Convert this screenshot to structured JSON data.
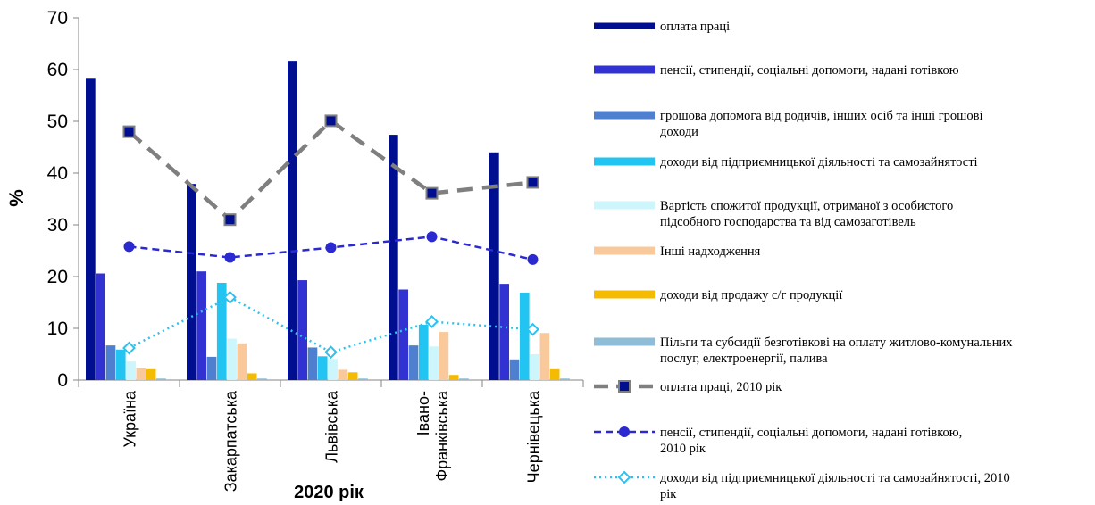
{
  "chart_data": {
    "type": "bar",
    "ylabel": "%",
    "xlabel": "2020 рік",
    "ylim": [
      0,
      70
    ],
    "yticks": [
      0,
      10,
      20,
      30,
      40,
      50,
      60,
      70
    ],
    "categories": [
      "Україна",
      "Закарпатська",
      "Львівська",
      "Івано-\nФранківська",
      "Чернівецька"
    ],
    "series": [
      {
        "name": "оплата праці",
        "color": "#000f8f",
        "values": [
          58.4,
          37.9,
          61.7,
          47.4,
          44.0
        ]
      },
      {
        "name": "пенсії,  стипендії,  соціальні  допомоги,  надані готівкою",
        "color": "#3232d2",
        "values": [
          20.6,
          21.0,
          19.3,
          17.5,
          18.6
        ]
      },
      {
        "name": "грошова допомога від родичів,  інших  осіб та інші грошові доходи",
        "color": "#4f7fcf",
        "values": [
          6.7,
          4.5,
          6.3,
          6.7,
          4.0
        ]
      },
      {
        "name": "доходи від підприємницької  діяльності та самозайнятості",
        "color": "#22c5f2",
        "values": [
          5.9,
          18.8,
          4.6,
          10.7,
          16.9
        ]
      },
      {
        "name": "Вартість спожитої продукції,  отриманої з особистого підсобного господарства та від самозаготівель",
        "color": "#ccf6fb",
        "values": [
          3.6,
          8.0,
          4.1,
          6.5,
          5.0
        ]
      },
      {
        "name": "Інші  надходження",
        "color": "#f9c99c",
        "values": [
          2.3,
          7.1,
          2.0,
          9.3,
          9.1
        ]
      },
      {
        "name": "доходи від продажу с/г продукції",
        "color": "#f4bb00",
        "values": [
          2.1,
          1.3,
          1.5,
          1.0,
          2.1
        ]
      },
      {
        "name": "Пільги та субсидії безготівкові на оплату житлово-комунальних  послуг, електроенергії,  палива",
        "color": "#8fbcd6",
        "values": [
          0.3,
          0.3,
          0.3,
          0.3,
          0.3
        ]
      }
    ],
    "lines": [
      {
        "name": "оплата праці,  2010 рік",
        "color": "#7f7f7f",
        "style": "dashed-square",
        "values": [
          48.0,
          31.0,
          50.1,
          36.1,
          38.2
        ]
      },
      {
        "name": "пенсії,  стипендії,  соціальні  допомоги,  надані готівкою,  2010 рік",
        "color": "#2a2ad0",
        "style": "dashed-circle",
        "values": [
          25.8,
          23.7,
          25.6,
          27.7,
          23.3
        ]
      },
      {
        "name": "доходи від підприємницької  діяльності та самозайнятості, 2010 рік",
        "color": "#2ec1ef",
        "style": "dotted-diamond",
        "values": [
          6.2,
          16.0,
          5.4,
          11.3,
          9.8
        ]
      }
    ],
    "legend_position": "right"
  }
}
